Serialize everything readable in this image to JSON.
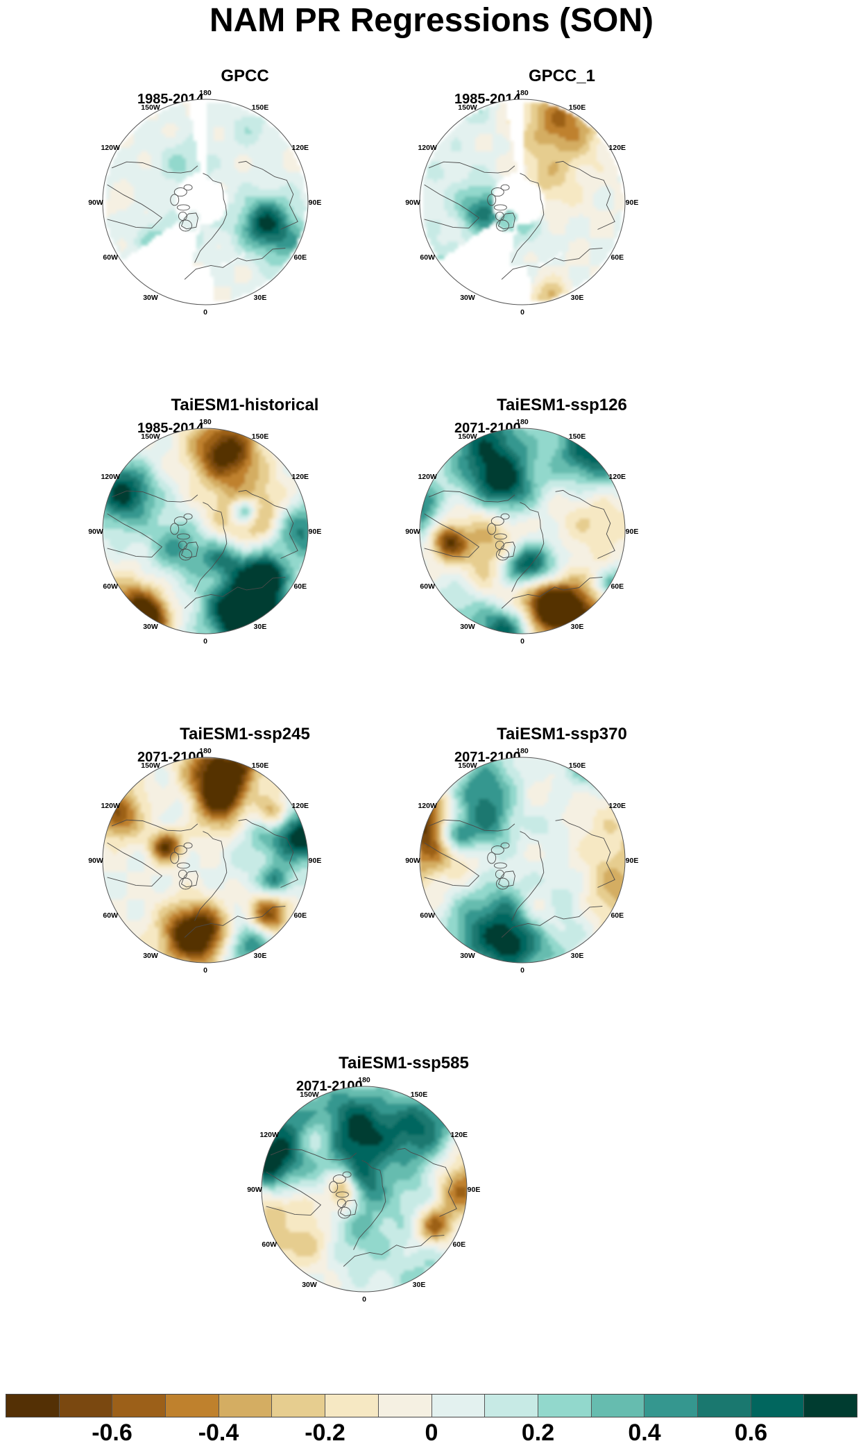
{
  "title": "NAM PR Regressions (SON)",
  "longitude_labels": [
    "180",
    "150E",
    "120E",
    "90E",
    "60E",
    "30E",
    "0",
    "30W",
    "60W",
    "90W",
    "120W",
    "150W"
  ],
  "panels": [
    {
      "id": "gpcc",
      "title": "GPCC",
      "period": "1985-2014",
      "kind": "obs",
      "seed": 11
    },
    {
      "id": "gpcc-1",
      "title": "GPCC_1",
      "period": "1985-2014",
      "kind": "obs",
      "seed": 12
    },
    {
      "id": "taiesm1-historical",
      "title": "TaiESM1-historical",
      "period": "1985-2014",
      "kind": "model",
      "seed": 21
    },
    {
      "id": "taiesm1-ssp126",
      "title": "TaiESM1-ssp126",
      "period": "2071-2100",
      "kind": "model",
      "seed": 37
    },
    {
      "id": "taiesm1-ssp245",
      "title": "TaiESM1-ssp245",
      "period": "2071-2100",
      "kind": "model",
      "seed": 53
    },
    {
      "id": "taiesm1-ssp370",
      "title": "TaiESM1-ssp370",
      "period": "2071-2100",
      "kind": "model",
      "seed": 71
    },
    {
      "id": "taiesm1-ssp585",
      "title": "TaiESM1-ssp585",
      "period": "2071-2100",
      "kind": "model",
      "seed": 89
    }
  ],
  "colorbar": {
    "colors": [
      "#543005",
      "#7a4810",
      "#9c6019",
      "#bf812d",
      "#d4ad62",
      "#e6cd8f",
      "#f6e8c3",
      "#f5f0e2",
      "#e3f1ef",
      "#c7eae5",
      "#92d8cc",
      "#66bcaf",
      "#35978f",
      "#1a786f",
      "#01665e",
      "#003c30"
    ],
    "labels": [
      "-0.6",
      "-0.4",
      "-0.2",
      "0",
      "0.2",
      "0.4",
      "0.6"
    ],
    "label_values": [
      -0.6,
      -0.4,
      -0.2,
      0,
      0.2,
      0.4,
      0.6
    ],
    "range": [
      -0.8,
      0.8
    ]
  }
}
